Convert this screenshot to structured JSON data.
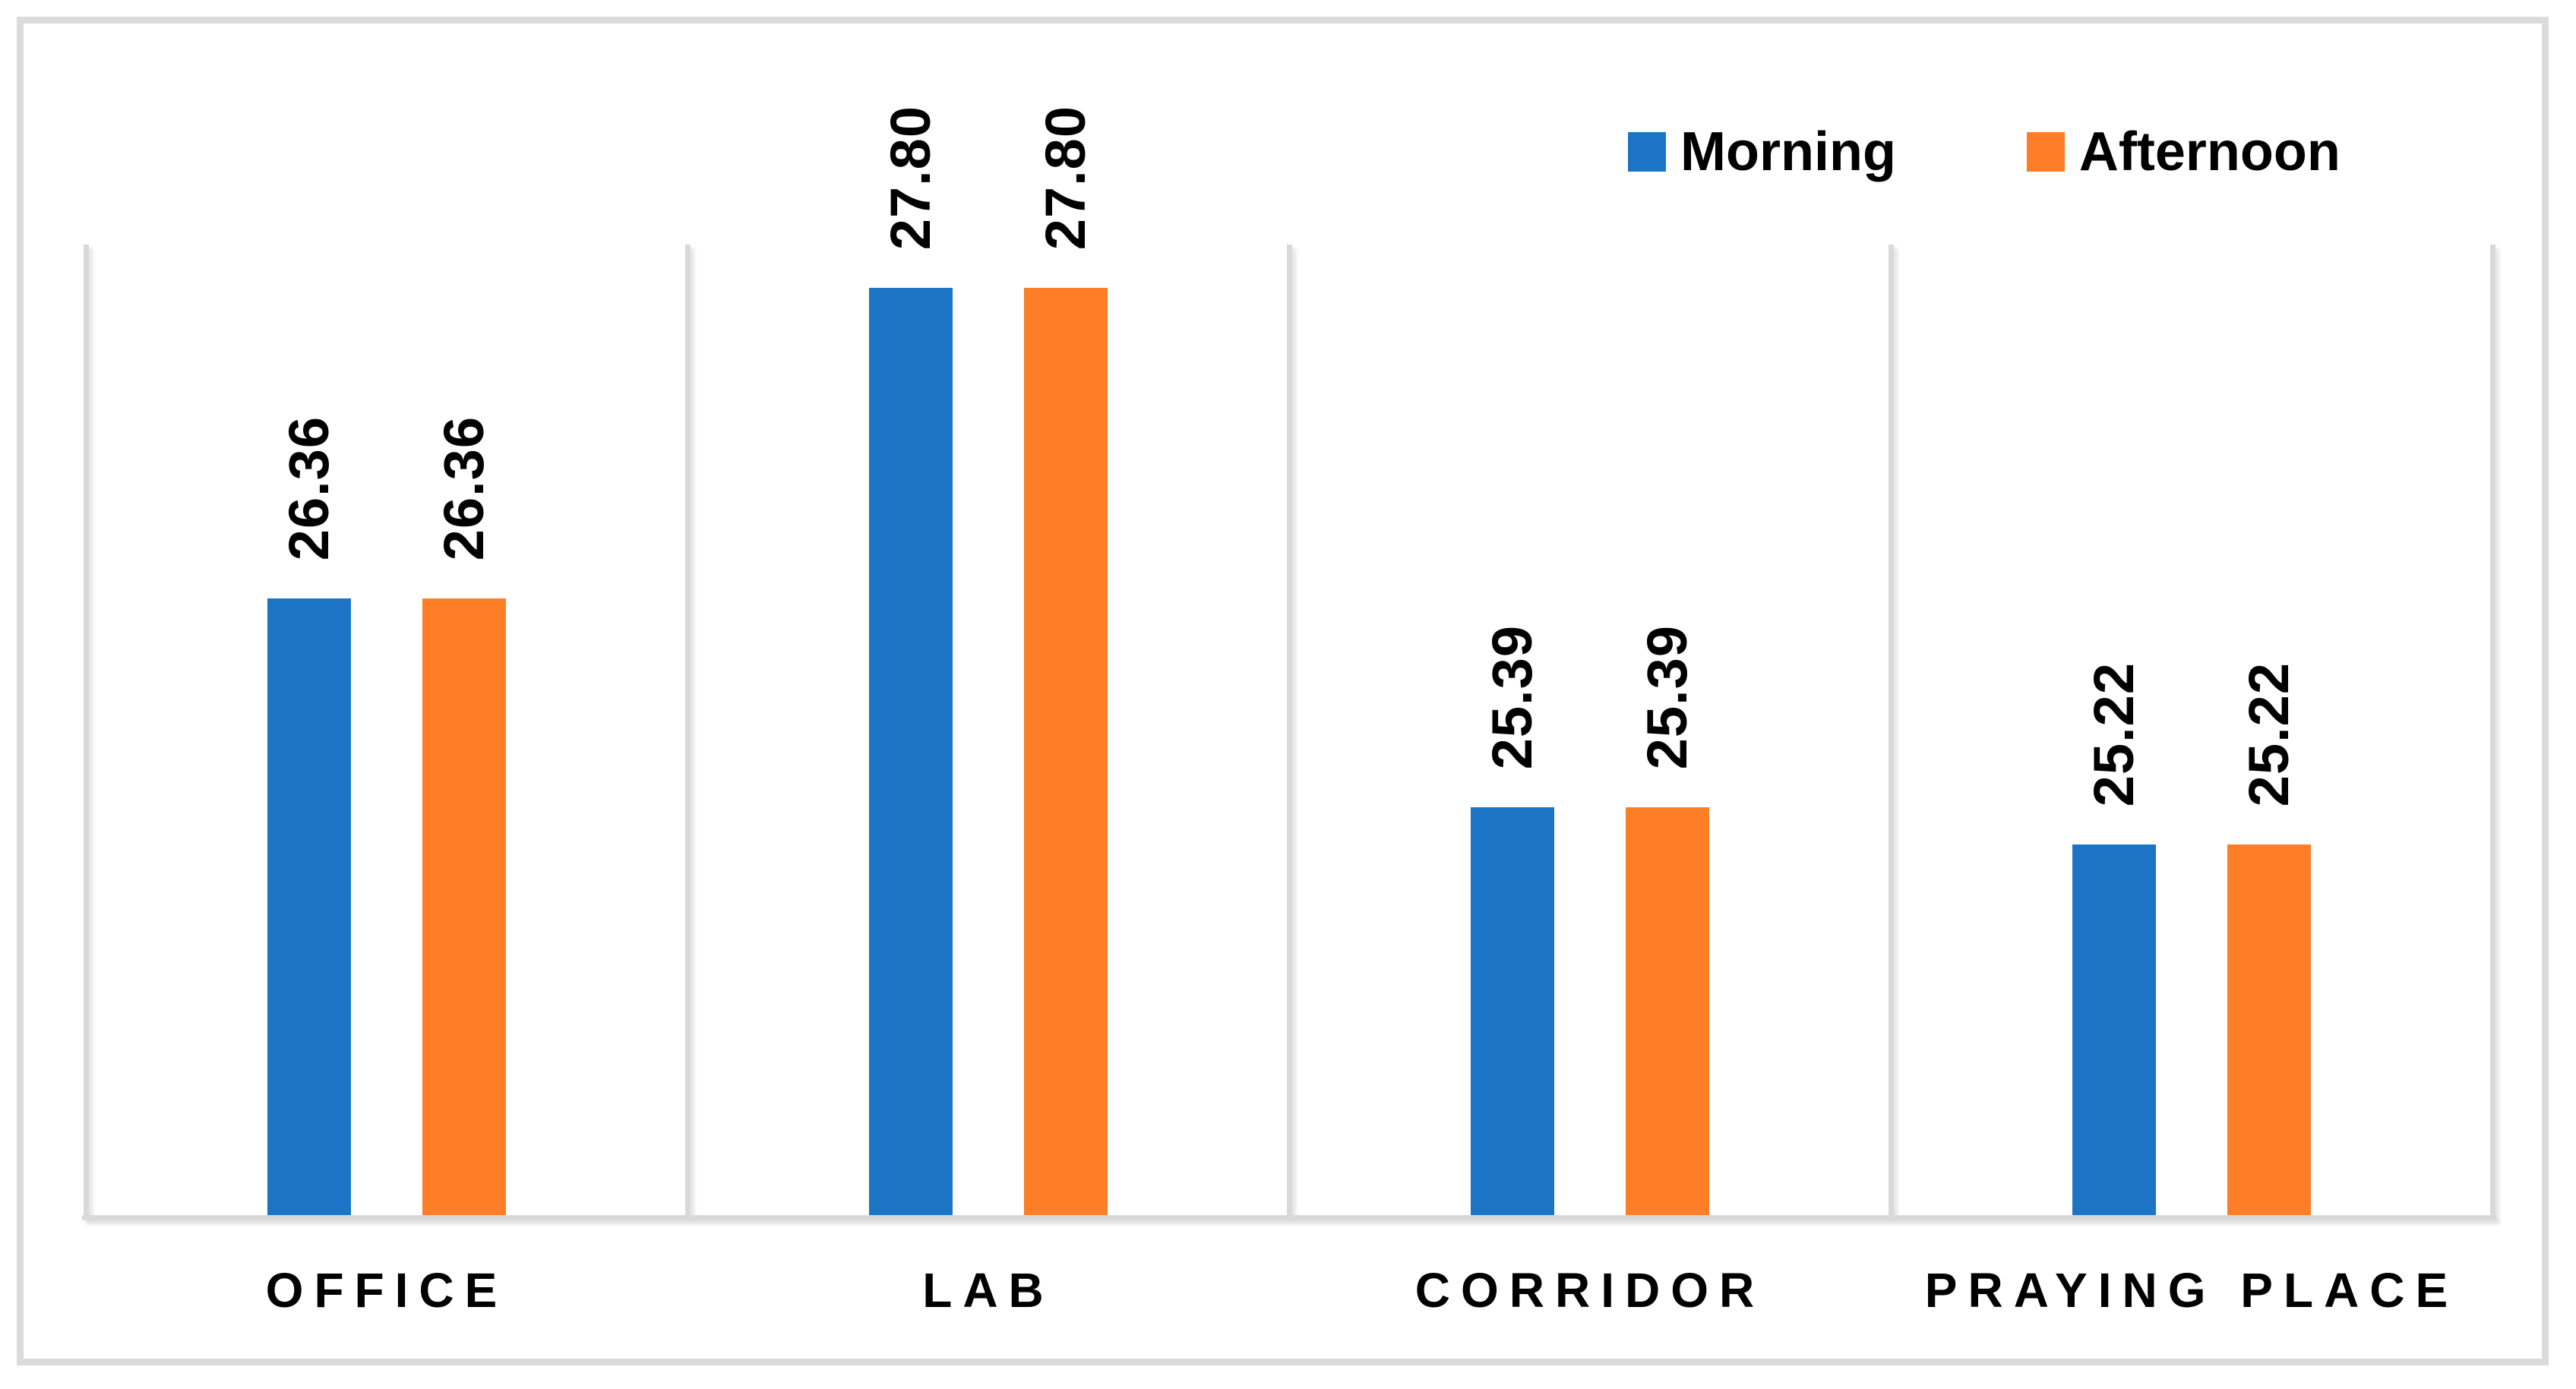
{
  "chart_data": {
    "type": "bar",
    "title": "",
    "xlabel": "",
    "ylabel": "",
    "categories": [
      "OFFICE",
      "LAB",
      "CORRIDOR",
      "PRAYING PLACE"
    ],
    "series": [
      {
        "name": "Morning",
        "color": "#1B74C6",
        "values": [
          26.36,
          27.8,
          25.39,
          25.22
        ],
        "labels": [
          "26.36",
          "27.80",
          "25.39",
          "25.22"
        ]
      },
      {
        "name": "Afternoon",
        "color": "#FD7E27",
        "values": [
          26.36,
          27.8,
          25.39,
          25.22
        ],
        "labels": [
          "26.36",
          "27.80",
          "25.39",
          "25.22"
        ]
      }
    ],
    "ylim": [
      23.5,
      28
    ],
    "y_axis_visible": false,
    "grid": "vertical-category-separators",
    "gridline_color": "#D9D9D9",
    "legend_position": "top-right",
    "data_label_rotation_deg": 90,
    "label_color": "#000000",
    "background_color": "#FFFFFF",
    "frame_border_color": "#DBDBDB"
  },
  "legend": {
    "items": [
      {
        "label": "Morning",
        "color": "#1B74C6"
      },
      {
        "label": "Afternoon",
        "color": "#FD7E27"
      }
    ]
  }
}
